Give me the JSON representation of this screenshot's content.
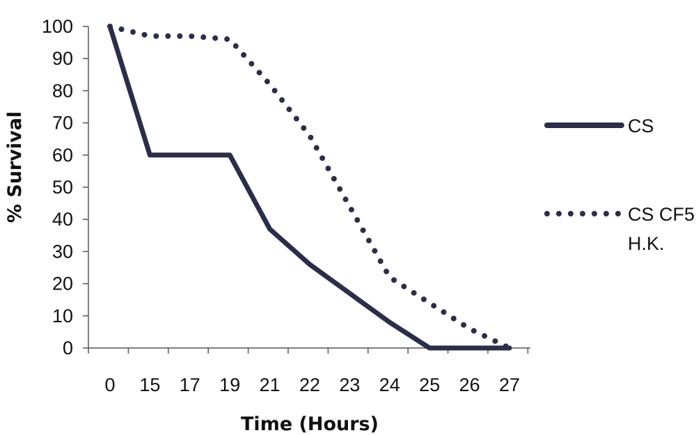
{
  "chart_data": {
    "type": "line",
    "xlabel": "Time (Hours)",
    "ylabel": "% Survival",
    "categories": [
      "0",
      "15",
      "17",
      "19",
      "21",
      "22",
      "23",
      "24",
      "25",
      "26",
      "27"
    ],
    "ylim": [
      0,
      100
    ],
    "yticks": [
      0,
      10,
      20,
      30,
      40,
      50,
      60,
      70,
      80,
      90,
      100
    ],
    "series": [
      {
        "name": "CS",
        "style": "solid",
        "color": "#2b2e4a",
        "values": [
          100,
          60,
          60,
          60,
          37,
          26,
          17,
          8,
          0,
          0,
          0
        ]
      },
      {
        "name": "CS CF5 H.K.",
        "name_lines": [
          "CS CF5",
          "H.K."
        ],
        "style": "dotted",
        "color": "#2b2e4a",
        "values": [
          100,
          97,
          97,
          96,
          82,
          66,
          44,
          22,
          14,
          6,
          0
        ]
      }
    ],
    "grid": false,
    "legend_position": "right"
  }
}
